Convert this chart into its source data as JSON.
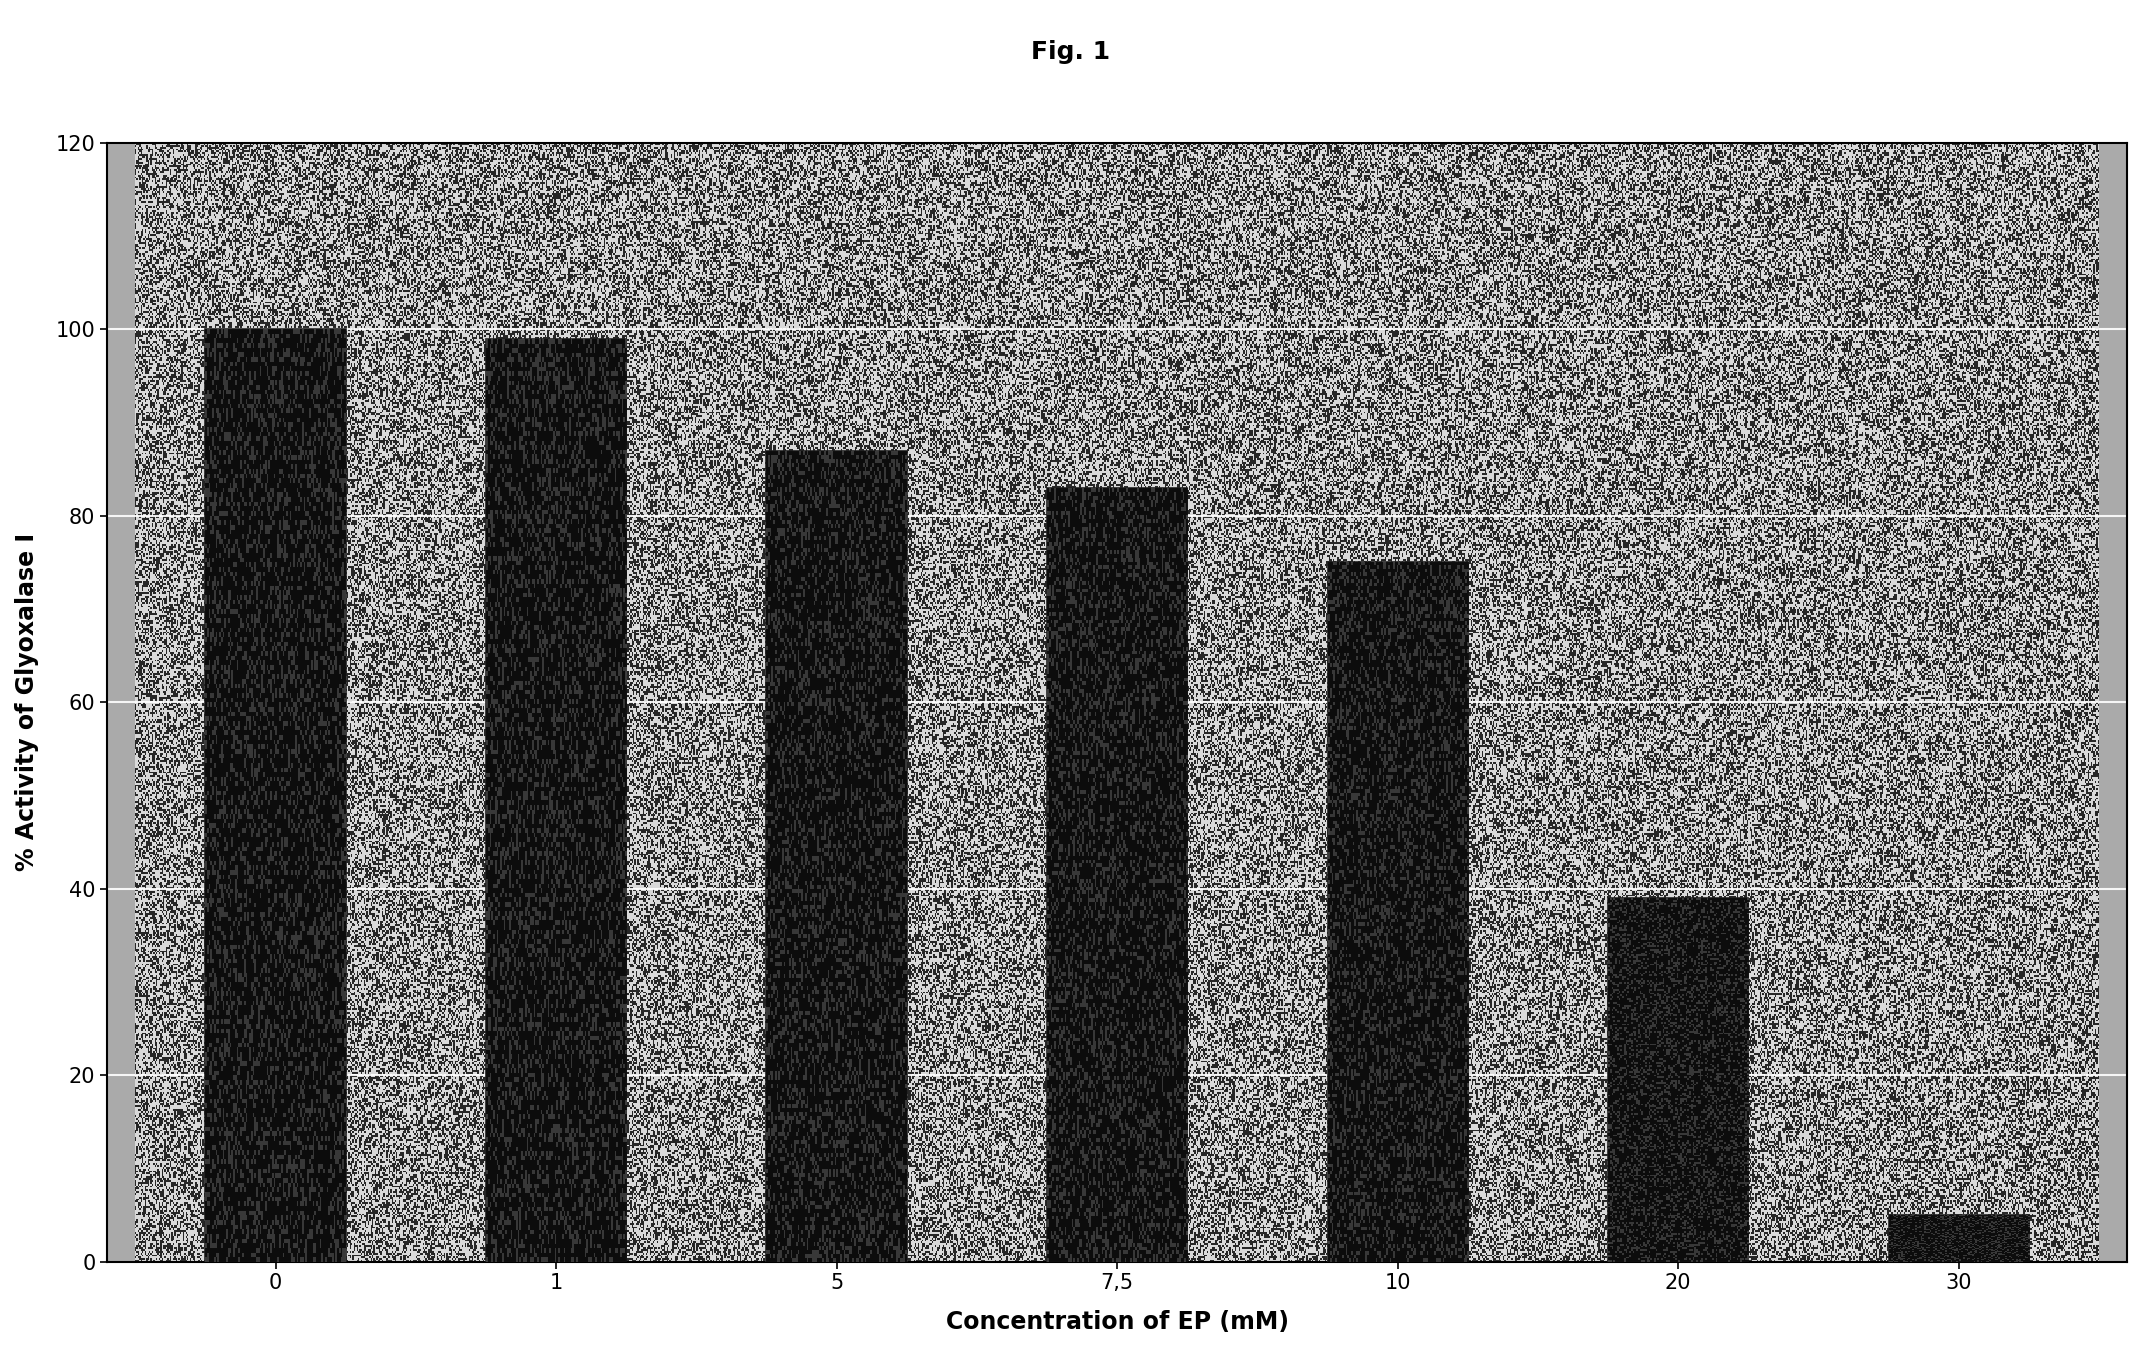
{
  "title": "Fig. 1",
  "xlabel": "Concentration of EP (mM)",
  "ylabel": "% Activity of Glyoxalase I",
  "categories": [
    "0",
    "1",
    "5",
    "7,5",
    "10",
    "20",
    "30"
  ],
  "values": [
    100,
    99,
    87,
    83,
    75,
    39,
    5
  ],
  "bar_color": "#111111",
  "fig_bg_color": "#ffffff",
  "outer_box_color": "#cccccc",
  "grid_color": "#ffffff",
  "ylim": [
    0,
    120
  ],
  "yticks": [
    0,
    20,
    40,
    60,
    80,
    100,
    120
  ],
  "title_fontsize": 18,
  "axis_label_fontsize": 17,
  "tick_fontsize": 15,
  "bar_width": 0.5,
  "noise_density": 0.45,
  "noise_seed": 12345
}
